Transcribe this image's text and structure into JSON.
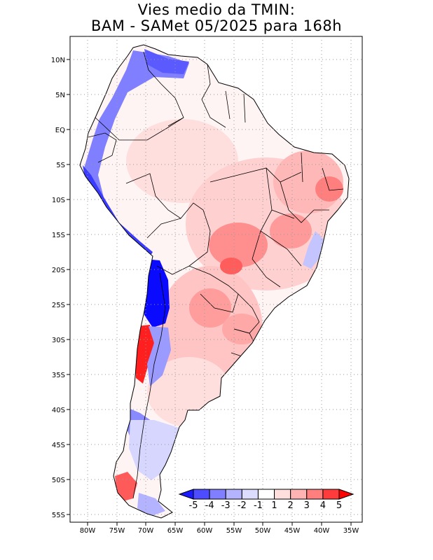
{
  "title": {
    "line1": "Vies medio da TMIN:",
    "line2": "BAM - SAMet 05/2025  para 168h"
  },
  "map": {
    "region": "South America",
    "variable": "TMIN bias",
    "lat_labels": [
      "10N",
      "5N",
      "EQ",
      "5S",
      "10S",
      "15S",
      "20S",
      "25S",
      "30S",
      "35S",
      "40S",
      "45S",
      "50S",
      "55S"
    ],
    "lon_labels": [
      "80W",
      "75W",
      "70W",
      "65W",
      "60W",
      "55W",
      "50W",
      "45W",
      "40W",
      "35W"
    ],
    "lon_range": [
      -83,
      -35
    ],
    "lat_range": [
      -56,
      13
    ]
  },
  "legend": {
    "labels": [
      "-5",
      "-4",
      "-3",
      "-2",
      "-1",
      "1",
      "2",
      "3",
      "4",
      "5"
    ],
    "colors": [
      "#1a1aff",
      "#4d4dff",
      "#7f7fff",
      "#b3b3ff",
      "#dcdcff",
      "#ffffff",
      "#ffdede",
      "#ffb3b3",
      "#ff7f7f",
      "#ff3b3b",
      "#ff0000"
    ]
  },
  "colors": {
    "positive": "#ff3b3b",
    "negative": "#1a1aff"
  }
}
